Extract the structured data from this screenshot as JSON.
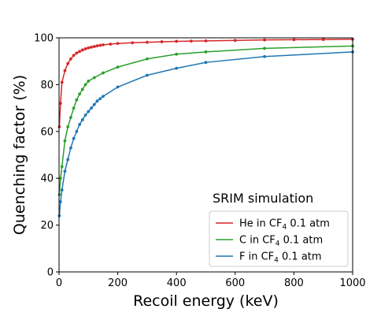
{
  "chart_data": {
    "type": "line",
    "xlabel": "Recoil energy (keV)",
    "ylabel": "Quenching factor (%)",
    "xlim": [
      0,
      1000
    ],
    "ylim": [
      0,
      100
    ],
    "xticks": [
      0,
      200,
      400,
      600,
      800,
      1000
    ],
    "yticks": [
      0,
      20,
      40,
      60,
      80,
      100
    ],
    "grid": false,
    "legend_position": "lower-right",
    "annotation": "SRIM simulation",
    "series": [
      {
        "name_prefix": "He in CF",
        "name_sub": "4",
        "name_suffix": " 0.1 atm",
        "color": "#d62728",
        "x": [
          1,
          5,
          10,
          20,
          30,
          40,
          50,
          60,
          70,
          80,
          90,
          100,
          110,
          120,
          130,
          140,
          150,
          175,
          200,
          250,
          300,
          350,
          400,
          450,
          500,
          600,
          700,
          800,
          900,
          1000
        ],
        "y": [
          62,
          72,
          81,
          86,
          89,
          91,
          92.5,
          93.5,
          94.2,
          94.8,
          95.3,
          95.7,
          96,
          96.3,
          96.6,
          96.8,
          97,
          97.3,
          97.6,
          97.9,
          98.1,
          98.3,
          98.5,
          98.6,
          98.7,
          98.9,
          99.1,
          99.2,
          99.3,
          99.4
        ]
      },
      {
        "name_prefix": "C in CF",
        "name_sub": "4",
        "name_suffix": " 0.1 atm",
        "color": "#2ca02c",
        "x": [
          1,
          5,
          10,
          20,
          30,
          40,
          50,
          60,
          70,
          80,
          90,
          100,
          120,
          150,
          200,
          300,
          400,
          500,
          700,
          1000
        ],
        "y": [
          33,
          40,
          45,
          56,
          62,
          66,
          70,
          73.5,
          76,
          78,
          80,
          81.5,
          83,
          85,
          87.5,
          91,
          93,
          94,
          95.5,
          96.5
        ]
      },
      {
        "name_prefix": "F in CF",
        "name_sub": "4",
        "name_suffix": " 0.1 atm",
        "color": "#1f77b4",
        "x": [
          1,
          5,
          10,
          20,
          30,
          40,
          50,
          60,
          70,
          80,
          90,
          100,
          110,
          120,
          130,
          140,
          150,
          200,
          300,
          400,
          500,
          700,
          1000
        ],
        "y": [
          24,
          30,
          35,
          43,
          48,
          53,
          57,
          60,
          63,
          65,
          67,
          68.5,
          70,
          71.5,
          73,
          74,
          75,
          79,
          84,
          87,
          89.5,
          92,
          94
        ]
      }
    ]
  }
}
